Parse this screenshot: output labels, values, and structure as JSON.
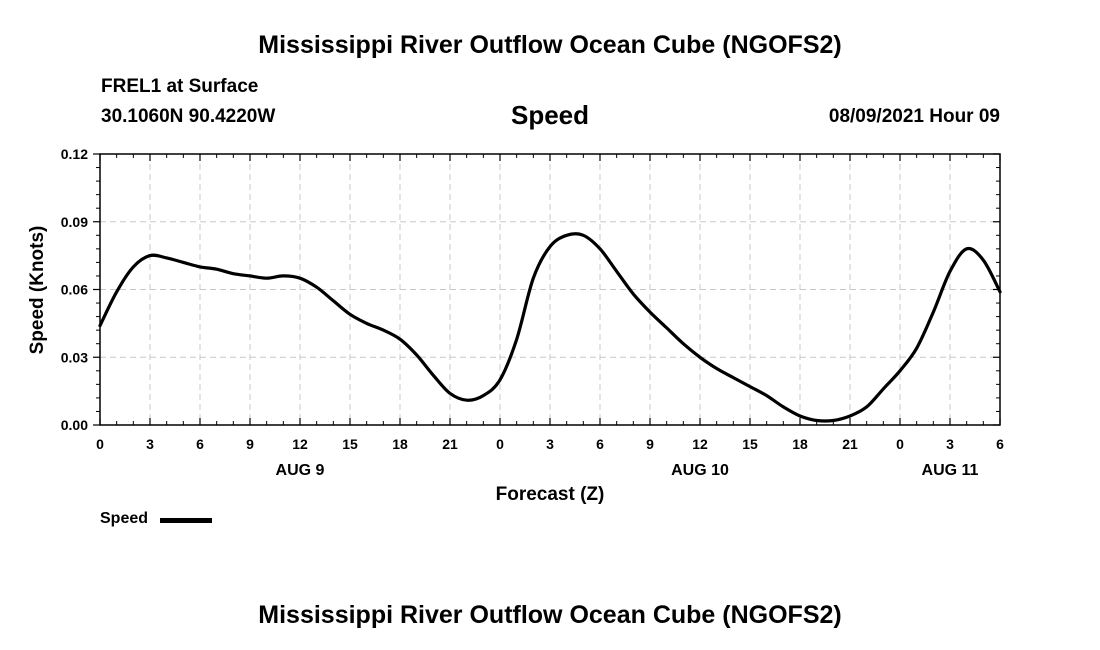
{
  "page": {
    "title": "Mississippi River Outflow Ocean Cube (NGOFS2)",
    "footer_title": "Mississippi River Outflow Ocean Cube (NGOFS2)",
    "station": "FREL1 at Surface",
    "coordinates": "30.1060N  90.4220W",
    "variable": "Speed",
    "datetime": "08/09/2021 Hour 09"
  },
  "chart_data": {
    "type": "line",
    "ylabel": "Speed (Knots)",
    "xlabel": "Forecast (Z)",
    "ylim": [
      0,
      0.12
    ],
    "xlim": [
      0,
      54
    ],
    "y_ticks": [
      "0.00",
      "0.03",
      "0.06",
      "0.09",
      "0.12"
    ],
    "y_tick_values": [
      0,
      0.03,
      0.06,
      0.09,
      0.12
    ],
    "x_ticks": [
      "0",
      "3",
      "6",
      "9",
      "12",
      "15",
      "18",
      "21",
      "0",
      "3",
      "6",
      "9",
      "12",
      "15",
      "18",
      "21",
      "0",
      "3",
      "6"
    ],
    "x_tick_values": [
      0,
      3,
      6,
      9,
      12,
      15,
      18,
      21,
      24,
      27,
      30,
      33,
      36,
      39,
      42,
      45,
      48,
      51,
      54
    ],
    "date_labels": [
      {
        "label": "AUG 9",
        "hour": 12
      },
      {
        "label": "AUG 10",
        "hour": 36
      },
      {
        "label": "AUG 11",
        "hour": 51
      }
    ],
    "grid": true,
    "legend_position": "bottom-left",
    "series": [
      {
        "name": "Speed",
        "color": "#000000",
        "x": [
          0,
          1,
          2,
          3,
          4,
          5,
          6,
          7,
          8,
          9,
          10,
          11,
          12,
          13,
          14,
          15,
          16,
          17,
          18,
          19,
          20,
          21,
          22,
          23,
          24,
          25,
          26,
          27,
          28,
          29,
          30,
          31,
          32,
          33,
          34,
          35,
          36,
          37,
          38,
          39,
          40,
          41,
          42,
          43,
          44,
          45,
          46,
          47,
          48,
          49,
          50,
          51,
          52,
          53,
          54
        ],
        "values": [
          0.044,
          0.059,
          0.07,
          0.075,
          0.074,
          0.072,
          0.07,
          0.069,
          0.067,
          0.066,
          0.065,
          0.066,
          0.065,
          0.061,
          0.055,
          0.049,
          0.045,
          0.042,
          0.038,
          0.031,
          0.022,
          0.014,
          0.011,
          0.013,
          0.02,
          0.038,
          0.065,
          0.079,
          0.084,
          0.084,
          0.078,
          0.068,
          0.058,
          0.05,
          0.043,
          0.036,
          0.03,
          0.025,
          0.021,
          0.017,
          0.013,
          0.008,
          0.004,
          0.002,
          0.002,
          0.004,
          0.008,
          0.016,
          0.024,
          0.034,
          0.05,
          0.068,
          0.078,
          0.073,
          0.059
        ]
      }
    ]
  }
}
